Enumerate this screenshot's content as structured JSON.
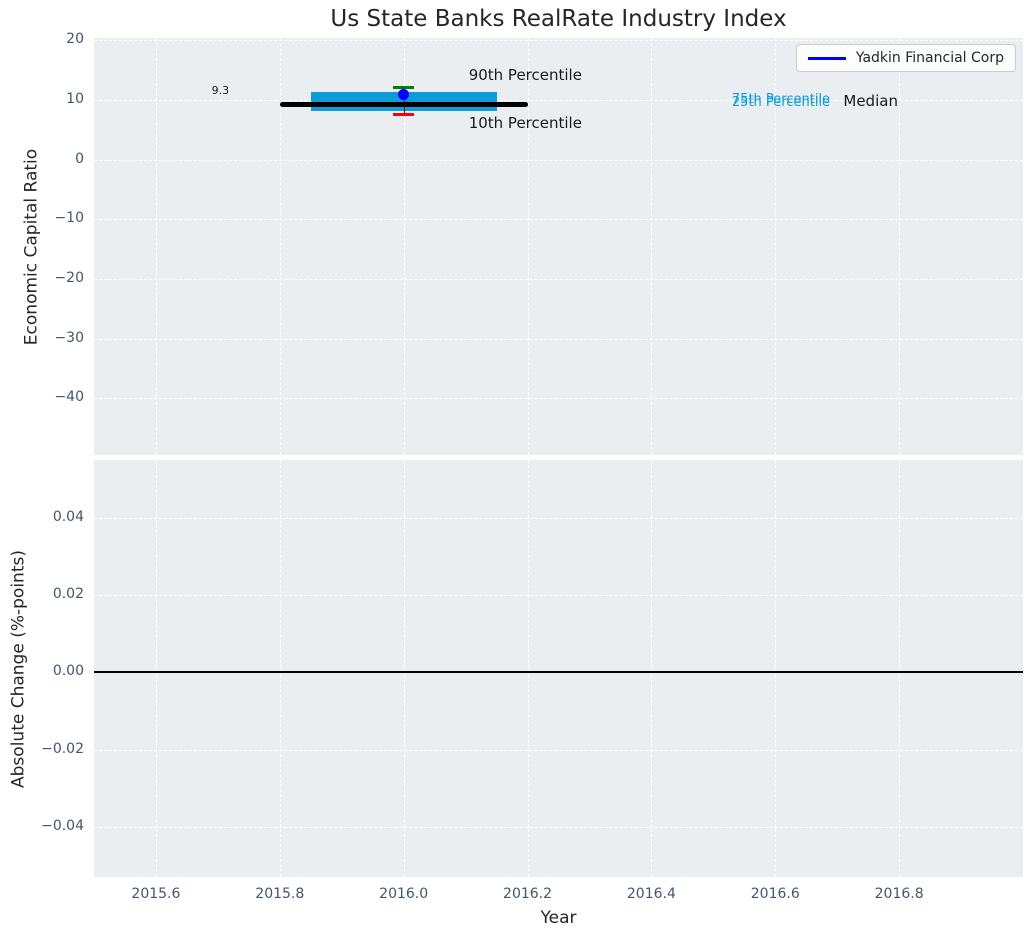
{
  "chart_data": [
    {
      "type": "boxplot",
      "title": "Us State Banks RealRate Industry Index",
      "ylabel": "Economic Capital Ratio",
      "xlim": [
        2015.5,
        2017.0
      ],
      "ylim": [
        -49.5,
        20.4
      ],
      "grid": true,
      "legend_position": "upper right",
      "legend": {
        "label": "Yadkin Financial Corp",
        "color": "#0000ff"
      },
      "yticks": {
        "values": [
          20,
          10,
          0,
          -10,
          -20,
          -30,
          -40
        ],
        "labels": [
          "20",
          "10",
          "0",
          "−10",
          "−20",
          "−30",
          "−40"
        ]
      },
      "xticks": {
        "values": [
          2015.6,
          2015.8,
          2016.0,
          2016.2,
          2016.4,
          2016.6,
          2016.8
        ]
      },
      "colors": {
        "box": "#0c9dd8",
        "median": "#000000",
        "p90": "#007f00",
        "p10": "#ff0000",
        "point": "#0000ff",
        "whisker": "#222222"
      },
      "industry_distribution": {
        "year": 2016.0,
        "p10": 7.5,
        "p25": 8.1,
        "median": 9.3,
        "p75": 11.4,
        "p90": 12.1,
        "median_span": [
          2015.8,
          2016.2
        ],
        "box_span": [
          2015.85,
          2016.15
        ],
        "cap_halfwidth": 0.017
      },
      "company_point": {
        "name": "Yadkin Financial Corp",
        "year": 2016.0,
        "value": 11.0
      },
      "annotations": [
        {
          "id": "median-value",
          "text": "9.3",
          "x": 2015.69,
          "y": 11.3,
          "size": 11,
          "color": "#1a1a1a"
        },
        {
          "id": "p90",
          "text": "90th Percentile",
          "x": 2016.105,
          "y": 13.9,
          "size": 15,
          "color": "#1a1a1a"
        },
        {
          "id": "p10",
          "text": "10th Percentile",
          "x": 2016.105,
          "y": 5.9,
          "size": 15,
          "color": "#1a1a1a"
        },
        {
          "id": "p75",
          "text": "75th Percentile",
          "x": 2016.53,
          "y": 9.75,
          "size": 13,
          "color": "#0c9dd8"
        },
        {
          "id": "p25",
          "text": "25th Percentile",
          "x": 2016.53,
          "y": 9.3,
          "size": 13,
          "color": "#0c9dd8"
        },
        {
          "id": "median",
          "text": "Median",
          "x": 2016.71,
          "y": 9.55,
          "size": 15,
          "color": "#1a1a1a"
        }
      ]
    },
    {
      "type": "line",
      "ylabel": "Absolute Change (%-points)",
      "xlabel": "Year",
      "xlim": [
        2015.5,
        2017.0
      ],
      "ylim": [
        -0.053,
        0.055
      ],
      "grid": true,
      "yticks": {
        "values": [
          0.04,
          0.02,
          0.0,
          -0.02,
          -0.04
        ],
        "labels": [
          "0.04",
          "0.02",
          "0.00",
          "−0.02",
          "−0.04"
        ]
      },
      "xticks": {
        "values": [
          2015.6,
          2015.8,
          2016.0,
          2016.2,
          2016.4,
          2016.6,
          2016.8
        ],
        "labels": [
          "2015.6",
          "2015.8",
          "2016.0",
          "2016.2",
          "2016.4",
          "2016.6",
          "2016.8"
        ]
      },
      "zero_line": {
        "value": 0.0,
        "color": "#000000"
      }
    }
  ]
}
